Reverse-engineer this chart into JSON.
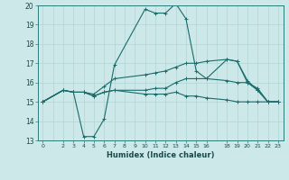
{
  "xlabel": "Humidex (Indice chaleur)",
  "bg_color": "#cce8e8",
  "grid_color": "#b0d4d4",
  "line_color": "#1a6b6b",
  "xlim": [
    -0.5,
    23.5
  ],
  "ylim": [
    13,
    20
  ],
  "xticks": [
    0,
    2,
    3,
    4,
    5,
    6,
    7,
    8,
    9,
    10,
    11,
    12,
    13,
    14,
    15,
    16,
    18,
    19,
    20,
    21,
    22,
    23
  ],
  "yticks": [
    13,
    14,
    15,
    16,
    17,
    18,
    19,
    20
  ],
  "lines": [
    {
      "x": [
        0,
        2,
        3,
        4,
        5,
        6,
        7,
        10,
        11,
        12,
        13,
        14,
        15,
        16,
        18,
        19,
        20,
        21,
        22,
        23
      ],
      "y": [
        15.0,
        15.6,
        15.5,
        13.2,
        13.2,
        14.1,
        16.9,
        19.8,
        19.6,
        19.6,
        20.1,
        19.3,
        16.6,
        16.2,
        17.2,
        17.1,
        16.1,
        15.6,
        15.0,
        15.0
      ]
    },
    {
      "x": [
        0,
        2,
        3,
        4,
        5,
        6,
        7,
        10,
        11,
        12,
        13,
        14,
        15,
        16,
        18,
        19,
        20,
        21,
        22,
        23
      ],
      "y": [
        15.0,
        15.6,
        15.5,
        15.5,
        15.3,
        15.5,
        15.6,
        15.4,
        15.4,
        15.4,
        15.5,
        15.3,
        15.3,
        15.2,
        15.1,
        15.0,
        15.0,
        15.0,
        15.0,
        15.0
      ]
    },
    {
      "x": [
        0,
        2,
        3,
        4,
        5,
        6,
        7,
        10,
        11,
        12,
        13,
        14,
        15,
        16,
        18,
        19,
        20,
        21,
        22,
        23
      ],
      "y": [
        15.0,
        15.6,
        15.5,
        15.5,
        15.4,
        15.8,
        16.2,
        16.4,
        16.5,
        16.6,
        16.8,
        17.0,
        17.0,
        17.1,
        17.2,
        17.1,
        16.0,
        15.6,
        15.0,
        15.0
      ]
    },
    {
      "x": [
        0,
        2,
        3,
        4,
        5,
        6,
        7,
        10,
        11,
        12,
        13,
        14,
        15,
        16,
        18,
        19,
        20,
        21,
        22,
        23
      ],
      "y": [
        15.0,
        15.6,
        15.5,
        15.5,
        15.3,
        15.5,
        15.6,
        15.6,
        15.7,
        15.7,
        16.0,
        16.2,
        16.2,
        16.2,
        16.1,
        16.0,
        16.0,
        15.7,
        15.0,
        15.0
      ]
    }
  ]
}
